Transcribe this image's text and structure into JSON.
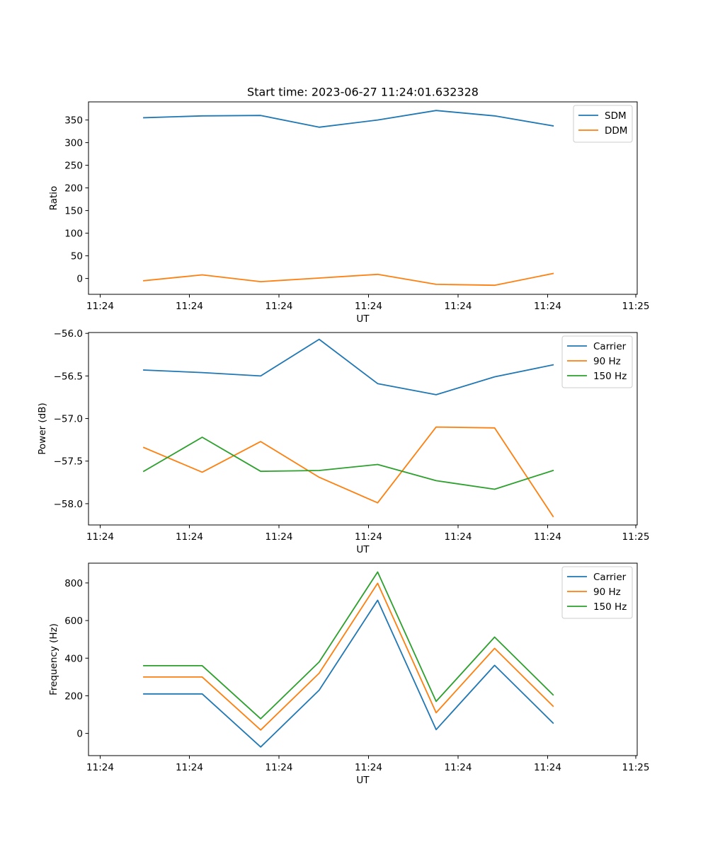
{
  "figure": {
    "title": "Start time: 2023-06-27 11:24:01.632328"
  },
  "colors": {
    "blue": "#1f77b4",
    "orange": "#ff7f0e",
    "green": "#2ca02c"
  },
  "chart_data": [
    {
      "type": "line",
      "title": "Start time: 2023-06-27 11:24:01.632328",
      "xlabel": "UT",
      "ylabel": "Ratio",
      "x_tick_labels": [
        "11:24",
        "11:24",
        "11:24",
        "11:24",
        "11:24",
        "11:24",
        "11:24"
      ],
      "x_tick_last_label": "11:25",
      "yticks": [
        0,
        50,
        100,
        150,
        200,
        250,
        300,
        350
      ],
      "ylim": [
        -35,
        390
      ],
      "grid": false,
      "legend_position": "top-right",
      "x_points": 8,
      "series": [
        {
          "name": "SDM",
          "color": "#1f77b4",
          "values": [
            355,
            359,
            360,
            334,
            350,
            371,
            359,
            337
          ]
        },
        {
          "name": "DDM",
          "color": "#ff7f0e",
          "values": [
            -5,
            8,
            -7,
            1,
            9,
            -13,
            -15,
            11
          ]
        }
      ]
    },
    {
      "type": "line",
      "xlabel": "UT",
      "ylabel": "Power (dB)",
      "x_tick_labels": [
        "11:24",
        "11:24",
        "11:24",
        "11:24",
        "11:24",
        "11:24",
        "11:24"
      ],
      "x_tick_last_label": "11:25",
      "yticks": [
        -58.0,
        -57.5,
        -57.0,
        -56.5,
        -56.0
      ],
      "ytick_labels": [
        "−58.0",
        "−57.5",
        "−57.0",
        "−56.5",
        "−56.0"
      ],
      "ylim": [
        -58.25,
        -55.99
      ],
      "grid": false,
      "legend_position": "top-right",
      "x_points": 8,
      "series": [
        {
          "name": "Carrier",
          "color": "#1f77b4",
          "values": [
            -56.43,
            -56.46,
            -56.5,
            -56.07,
            -56.59,
            -56.72,
            -56.51,
            -56.37
          ]
        },
        {
          "name": "90 Hz",
          "color": "#ff7f0e",
          "values": [
            -57.34,
            -57.63,
            -57.27,
            -57.69,
            -57.99,
            -57.1,
            -57.11,
            -58.15
          ]
        },
        {
          "name": "150 Hz",
          "color": "#2ca02c",
          "values": [
            -57.62,
            -57.22,
            -57.62,
            -57.61,
            -57.54,
            -57.73,
            -57.83,
            -57.61
          ]
        }
      ]
    },
    {
      "type": "line",
      "xlabel": "UT",
      "ylabel": "Frequency (Hz)",
      "x_tick_labels": [
        "11:24",
        "11:24",
        "11:24",
        "11:24",
        "11:24",
        "11:24",
        "11:24"
      ],
      "x_tick_last_label": "11:25",
      "yticks": [
        0,
        200,
        400,
        600,
        800
      ],
      "ylim": [
        -118,
        905
      ],
      "grid": false,
      "legend_position": "top-right",
      "x_points": 8,
      "series": [
        {
          "name": "Carrier",
          "color": "#1f77b4",
          "values": [
            210,
            210,
            -72,
            230,
            708,
            20,
            362,
            55
          ]
        },
        {
          "name": "90 Hz",
          "color": "#ff7f0e",
          "values": [
            300,
            300,
            18,
            320,
            798,
            110,
            452,
            145
          ]
        },
        {
          "name": "150 Hz",
          "color": "#2ca02c",
          "values": [
            360,
            360,
            78,
            380,
            858,
            170,
            512,
            205
          ]
        }
      ]
    }
  ]
}
